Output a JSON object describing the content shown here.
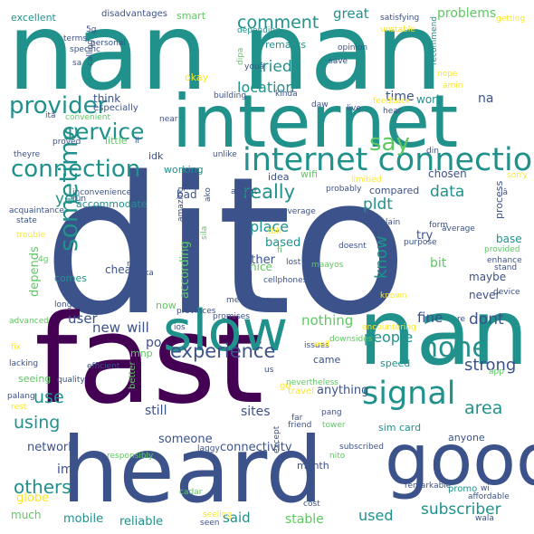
{
  "colors": {
    "background": "#ffffff",
    "palette": [
      "#440154",
      "#3b528b",
      "#21918c",
      "#5ec962",
      "#fde725"
    ]
  },
  "words": [
    "nan nan",
    "dito",
    "fast",
    "internet",
    "heard",
    "nan",
    "good",
    "slow",
    "internet connection",
    "connection",
    "provider",
    "service",
    "experience",
    "say",
    "signal",
    "none",
    "sometime",
    "really",
    "comment",
    "tried",
    "location",
    "know",
    "pldt",
    "data",
    "dont",
    "people",
    "strong",
    "area",
    "others",
    "using",
    "use",
    "subscriber",
    "stable",
    "used",
    "said",
    "reliable",
    "mobile",
    "much",
    "globe",
    "network",
    "im",
    "connectivity",
    "someone",
    "sites",
    "still",
    "fine",
    "nothing",
    "place",
    "based",
    "rather",
    "nice",
    "according",
    "depends",
    "yet",
    "great",
    "problems",
    "na",
    "time",
    "work",
    "smart",
    "excellent",
    "disadvantages",
    "remarks",
    "okay",
    "think",
    "especially",
    "little",
    "working",
    "idk",
    "bad",
    "accommodate",
    "wifi",
    "idea",
    "compared",
    "chosen",
    "process",
    "try",
    "bit",
    "maybe",
    "base",
    "never",
    "user",
    "new",
    "will",
    "po",
    "cheap",
    "comes",
    "seeing",
    "anything",
    "came",
    "speed",
    "sim card",
    "month",
    "promo",
    "wi",
    "anyone",
    "mnp",
    "now",
    "better",
    "us",
    "go",
    "travel",
    "nevertheless",
    "issues",
    "downsides",
    "messeging",
    "cellphones",
    "maayos",
    "sila",
    "amazing",
    "rural",
    "naka",
    "tbh",
    "lost",
    "fi",
    "doesnt",
    "coverage",
    "complain",
    "purpose",
    "form",
    "average",
    "provided",
    "enhance",
    "stand",
    "device",
    "known",
    "encountering",
    "re",
    "well",
    "ios",
    "app",
    "fix",
    "lacking",
    "advanced",
    "quality",
    "efficient",
    "palang",
    "rest",
    "trouble",
    "4g",
    "long",
    "provinces",
    "promises",
    "laggy",
    "nito",
    "tower",
    "pang",
    "subscribed",
    "except",
    "far",
    "friend",
    "cadar",
    "remarkable",
    "cost",
    "wala",
    "affordable",
    "seen",
    "seeling",
    "responsibly",
    "specific",
    "sa",
    "calling",
    "terms",
    "personal",
    "5g",
    "depending",
    "dipa",
    "youâ",
    "save",
    "satisfying",
    "unstable",
    "getting",
    "recommend",
    "opinion",
    "kinda",
    "daw",
    "live",
    "feedback",
    "hear",
    "amin",
    "nope",
    "building",
    "near",
    "din",
    "sorry",
    "iâ",
    "itâ",
    "convenient",
    "proved",
    "theyre",
    "unlike",
    "alright",
    "ako",
    "probably",
    "limitied",
    "inconvenience",
    "acquaintance",
    "state",
    "run",
    "ll"
  ]
}
